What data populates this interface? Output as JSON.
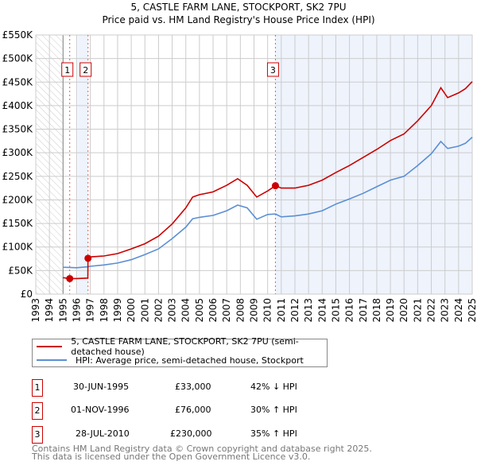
{
  "title_line1": "5, CASTLE FARM LANE, STOCKPORT, SK2 7PU",
  "title_line2": "Price paid vs. HM Land Registry's House Price Index (HPI)",
  "legend": {
    "series1": "5, CASTLE FARM LANE, STOCKPORT, SK2 7PU (semi-detached house)",
    "series2": "HPI: Average price, semi-detached house, Stockport"
  },
  "sales": [
    {
      "n": "1",
      "date": "30-JUN-1995",
      "price": "£33,000",
      "hpi": "42% ↓ HPI"
    },
    {
      "n": "2",
      "date": "01-NOV-1996",
      "price": "£76,000",
      "hpi": "30% ↑ HPI"
    },
    {
      "n": "3",
      "date": "28-JUL-2010",
      "price": "£230,000",
      "hpi": "35% ↑ HPI"
    }
  ],
  "footer_line1": "Contains HM Land Registry data © Crown copyright and database right 2025.",
  "footer_line2": "This data is licensed under the Open Government Licence v3.0.",
  "colors": {
    "price": "#cc0000",
    "hpi": "#5b8fd4",
    "shade": "#eef3fc"
  },
  "chart_data": {
    "type": "line",
    "xlim": [
      1993,
      2025
    ],
    "ylim": [
      0,
      550000
    ],
    "yticks": [
      0,
      50000,
      100000,
      150000,
      200000,
      250000,
      300000,
      350000,
      400000,
      450000,
      500000,
      550000
    ],
    "ytick_labels": [
      "£0",
      "£50K",
      "£100K",
      "£150K",
      "£200K",
      "£250K",
      "£300K",
      "£350K",
      "£400K",
      "£450K",
      "£500K",
      "£550K"
    ],
    "xtick_labels": [
      "1993",
      "1994",
      "1995",
      "1996",
      "1997",
      "1998",
      "1999",
      "2000",
      "2001",
      "2002",
      "2003",
      "2004",
      "2005",
      "2006",
      "2007",
      "2008",
      "2009",
      "2010",
      "2011",
      "2012",
      "2013",
      "2014",
      "2015",
      "2016",
      "2017",
      "2018",
      "2019",
      "2020",
      "2021",
      "2022",
      "2023",
      "2024",
      "2025"
    ],
    "hatched_before": 1995,
    "sale_points": [
      {
        "label": "1",
        "x": 1995.49,
        "y": 33000
      },
      {
        "label": "2",
        "x": 1996.83,
        "y": 76000
      },
      {
        "label": "3",
        "x": 2010.57,
        "y": 230000
      }
    ],
    "series": [
      {
        "name": "5, CASTLE FARM LANE, STOCKPORT, SK2 7PU (semi-detached house)",
        "x": [
          1995.0,
          1995.49,
          1996.0,
          1996.82,
          1996.83,
          1997,
          1998,
          1999,
          2000,
          2001,
          2002,
          2003,
          2004,
          2004.5,
          2005,
          2006,
          2007,
          2007.8,
          2008.5,
          2009.2,
          2010,
          2010.57,
          2011,
          2012,
          2013,
          2014,
          2015,
          2016,
          2017,
          2018,
          2019,
          2020,
          2021,
          2022,
          2022.7,
          2023.2,
          2024,
          2024.5,
          2025
        ],
        "y": [
          35000,
          33000,
          33000,
          34000,
          76000,
          79000,
          81000,
          86000,
          96000,
          107000,
          123000,
          149000,
          183000,
          206000,
          211000,
          217000,
          231000,
          245000,
          231000,
          206000,
          219000,
          230000,
          225000,
          225000,
          231000,
          242000,
          258000,
          273000,
          290000,
          307000,
          326000,
          340000,
          368000,
          400000,
          438000,
          417000,
          427000,
          436000,
          451000
        ]
      },
      {
        "name": "HPI: Average price, semi-detached house, Stockport",
        "x": [
          1995.0,
          1996.0,
          1996.8,
          1997,
          1998,
          1999,
          2000,
          2001,
          2002,
          2003,
          2004,
          2004.5,
          2005,
          2006,
          2007,
          2007.8,
          2008.5,
          2009.2,
          2010,
          2010.57,
          2011,
          2012,
          2013,
          2014,
          2015,
          2016,
          2017,
          2018,
          2019,
          2020,
          2021,
          2022,
          2022.7,
          2023.2,
          2024,
          2024.5,
          2025
        ],
        "y": [
          57000,
          56000,
          58000,
          59000,
          62000,
          66000,
          73000,
          84000,
          96000,
          118000,
          142000,
          160000,
          163000,
          167000,
          177000,
          189000,
          183000,
          159000,
          169000,
          170000,
          164000,
          166000,
          170000,
          177000,
          191000,
          202000,
          214000,
          228000,
          242000,
          250000,
          273000,
          298000,
          324000,
          309000,
          314000,
          320000,
          333000
        ]
      }
    ]
  }
}
